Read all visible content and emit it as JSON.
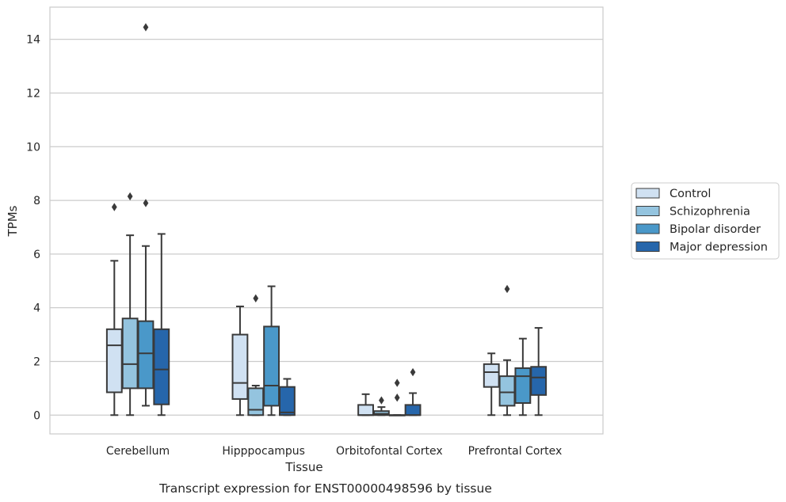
{
  "chart_data": {
    "type": "box",
    "xlabel": "Tissue",
    "ylabel": "TPMs",
    "caption": "Transcript expression for ENST00000498596 by tissue",
    "ylim": [
      -0.7,
      15.2
    ],
    "yticks": [
      0,
      2,
      4,
      6,
      8,
      10,
      12,
      14
    ],
    "ytick_labels": [
      "0",
      "2",
      "4",
      "6",
      "8",
      "10",
      "12",
      "14"
    ],
    "grid": "horizontal",
    "legend_position": "right",
    "categories": [
      "Cerebellum",
      "Hipppocampus",
      "Orbitofontal Cortex",
      "Prefrontal Cortex"
    ],
    "series": [
      {
        "name": "Control",
        "color": "#d0e1f2",
        "boxes": [
          {
            "whislo": 0,
            "q1": 0.85,
            "med": 2.6,
            "q3": 3.2,
            "whishi": 5.75,
            "fliers": [
              7.75
            ]
          },
          {
            "whislo": 0,
            "q1": 0.6,
            "med": 1.2,
            "q3": 3.0,
            "whishi": 4.05,
            "fliers": []
          },
          {
            "whislo": 0,
            "q1": 0,
            "med": 0,
            "q3": 0.38,
            "whishi": 0.78,
            "fliers": []
          },
          {
            "whislo": 0,
            "q1": 1.05,
            "med": 1.6,
            "q3": 1.9,
            "whishi": 2.3,
            "fliers": []
          }
        ]
      },
      {
        "name": "Schizophrenia",
        "color": "#94c4df",
        "boxes": [
          {
            "whislo": 0,
            "q1": 1.0,
            "med": 1.9,
            "q3": 3.6,
            "whishi": 6.7,
            "fliers": [
              8.15
            ]
          },
          {
            "whislo": 0,
            "q1": 0,
            "med": 0.2,
            "q3": 1.0,
            "whishi": 1.1,
            "fliers": [
              4.35
            ]
          },
          {
            "whislo": 0,
            "q1": 0,
            "med": 0.05,
            "q3": 0.15,
            "whishi": 0.3,
            "fliers": [
              0.55
            ]
          },
          {
            "whislo": 0,
            "q1": 0.35,
            "med": 0.85,
            "q3": 1.45,
            "whishi": 2.05,
            "fliers": [
              4.7
            ]
          }
        ]
      },
      {
        "name": "Bipolar disorder",
        "color": "#4a98c9",
        "boxes": [
          {
            "whislo": 0.35,
            "q1": 1.0,
            "med": 2.3,
            "q3": 3.5,
            "whishi": 6.3,
            "fliers": [
              7.9,
              14.45
            ]
          },
          {
            "whislo": 0,
            "q1": 0.35,
            "med": 1.1,
            "q3": 3.3,
            "whishi": 4.8,
            "fliers": []
          },
          {
            "whislo": 0,
            "q1": 0,
            "med": 0,
            "q3": 0,
            "whishi": 0,
            "fliers": [
              0.65,
              1.2
            ]
          },
          {
            "whislo": 0,
            "q1": 0.45,
            "med": 1.45,
            "q3": 1.75,
            "whishi": 2.85,
            "fliers": []
          }
        ]
      },
      {
        "name": "Major depression",
        "color": "#2666ab",
        "boxes": [
          {
            "whislo": 0,
            "q1": 0.4,
            "med": 1.7,
            "q3": 3.2,
            "whishi": 6.75,
            "fliers": []
          },
          {
            "whislo": 0,
            "q1": 0,
            "med": 0.1,
            "q3": 1.05,
            "whishi": 1.35,
            "fliers": []
          },
          {
            "whislo": 0,
            "q1": 0,
            "med": 0,
            "q3": 0.38,
            "whishi": 0.82,
            "fliers": [
              1.6
            ]
          },
          {
            "whislo": 0,
            "q1": 0.75,
            "med": 1.4,
            "q3": 1.8,
            "whishi": 3.25,
            "fliers": []
          }
        ]
      }
    ]
  }
}
